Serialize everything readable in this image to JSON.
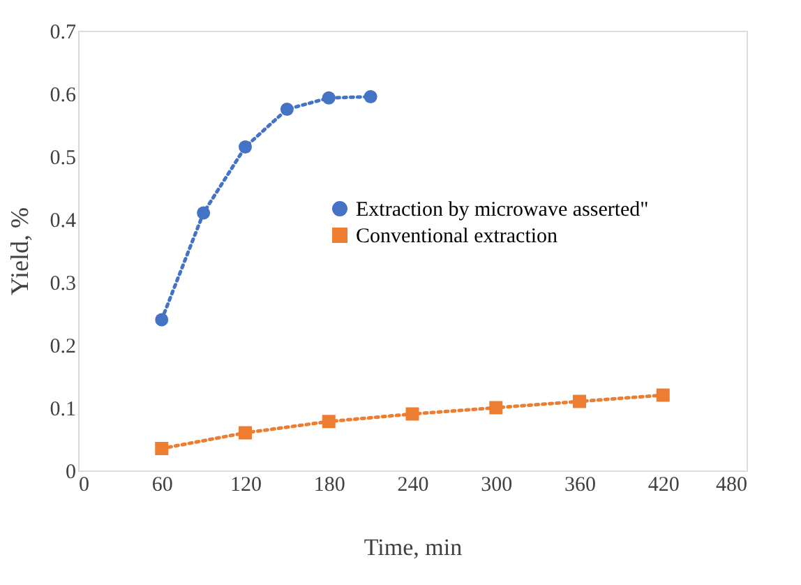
{
  "chart_data": {
    "type": "line",
    "xlabel": "Time, min",
    "ylabel": "Yield,  %",
    "xlim": [
      0,
      480
    ],
    "xticks": [
      0,
      60,
      120,
      180,
      240,
      300,
      360,
      420,
      480
    ],
    "ylim": [
      0,
      0.7
    ],
    "yticks": [
      0,
      0.1,
      0.2,
      0.3,
      0.4,
      0.5,
      0.6,
      0.7
    ],
    "grid": false,
    "legend": "right",
    "line_style": "dotted",
    "series": [
      {
        "name": "Extraction by microwave asserted\"",
        "color": "#4472c4",
        "marker": "circle",
        "x": [
          60,
          90,
          120,
          150,
          180,
          210
        ],
        "values": [
          0.24,
          0.41,
          0.515,
          0.575,
          0.593,
          0.595
        ]
      },
      {
        "name": "Conventional extraction",
        "color": "#ed7d31",
        "marker": "square",
        "x": [
          60,
          120,
          180,
          240,
          300,
          360,
          420
        ],
        "values": [
          0.035,
          0.06,
          0.078,
          0.09,
          0.1,
          0.11,
          0.12
        ]
      }
    ]
  }
}
